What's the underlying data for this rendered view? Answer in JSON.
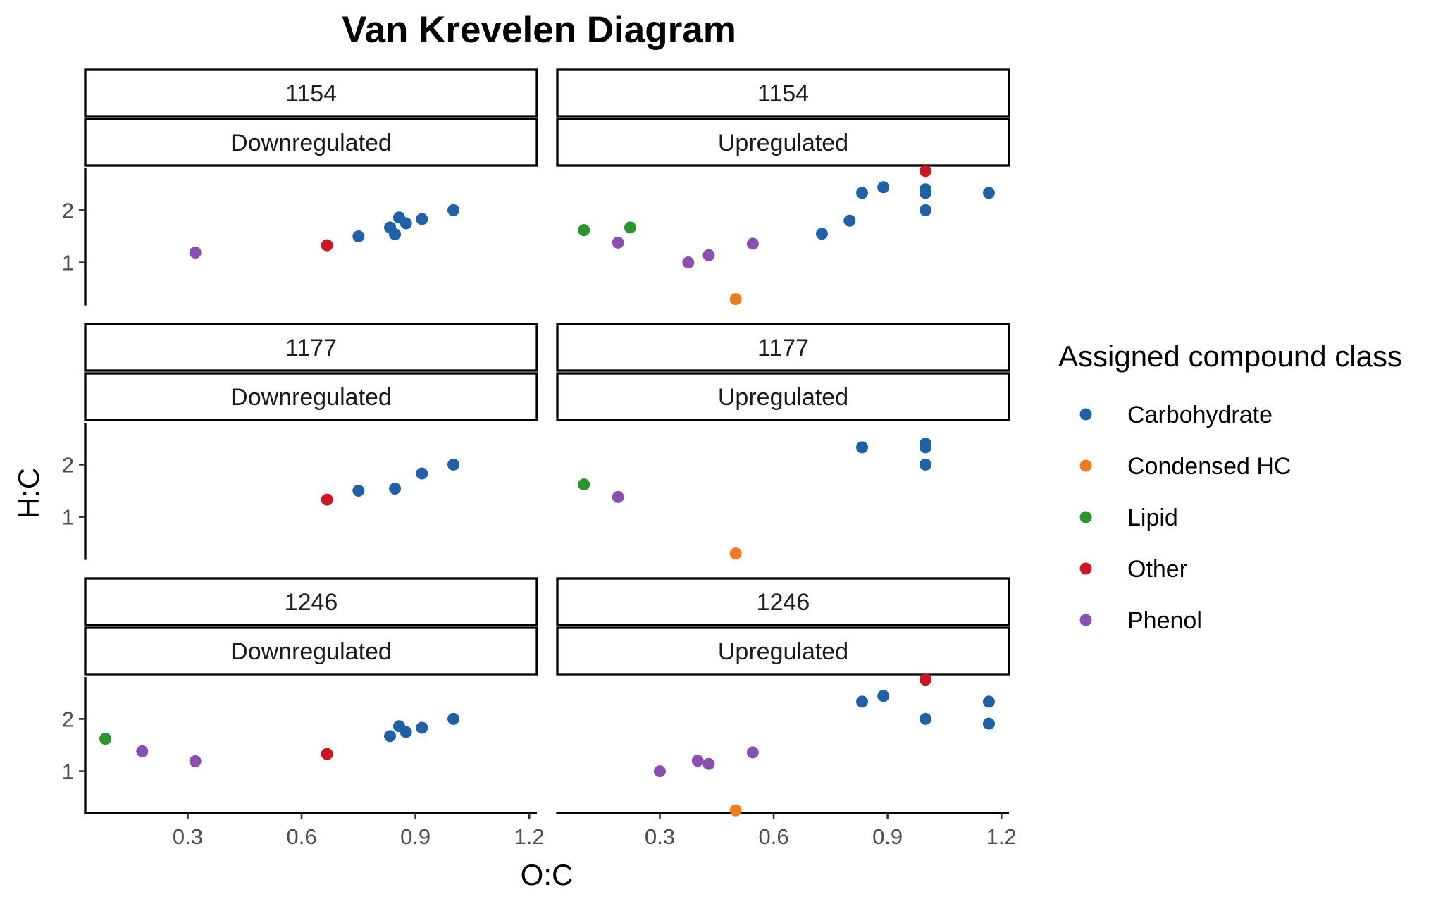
{
  "chart_data": {
    "type": "scatter",
    "title": "Van Krevelen Diagram",
    "xlabel": "O:C",
    "ylabel": "H:C",
    "xlim": [
      0.03,
      1.22
    ],
    "ylim": [
      0.2,
      2.8
    ],
    "x_ticks": [
      0.3,
      0.6,
      0.9,
      1.2
    ],
    "x_tick_labels": [
      "0.3",
      "0.6",
      "0.9",
      "1.2"
    ],
    "y_ticks": [
      1,
      2
    ],
    "y_tick_labels": [
      "1",
      "2"
    ],
    "grid": false,
    "legend": {
      "title": "Assigned compound class",
      "placement": "right",
      "entries": [
        {
          "name": "Carbohydrate",
          "color": "#1f61a8"
        },
        {
          "name": "Condensed HC",
          "color": "#f5791f"
        },
        {
          "name": "Lipid",
          "color": "#27962b"
        },
        {
          "name": "Other",
          "color": "#cf1424"
        },
        {
          "name": "Phenol",
          "color": "#8a4fb0"
        }
      ]
    },
    "panels": [
      {
        "strip_top": "1154",
        "strip_bottom": "Downregulated",
        "row": 0,
        "col": 0,
        "points": [
          {
            "x": 0.32,
            "y": 1.19,
            "class": "Phenol"
          },
          {
            "x": 0.667,
            "y": 1.33,
            "class": "Other"
          },
          {
            "x": 0.75,
            "y": 1.5,
            "class": "Carbohydrate"
          },
          {
            "x": 0.833,
            "y": 1.67,
            "class": "Carbohydrate"
          },
          {
            "x": 0.857,
            "y": 1.86,
            "class": "Carbohydrate"
          },
          {
            "x": 0.846,
            "y": 1.54,
            "class": "Carbohydrate"
          },
          {
            "x": 0.875,
            "y": 1.75,
            "class": "Carbohydrate"
          },
          {
            "x": 0.917,
            "y": 1.83,
            "class": "Carbohydrate"
          },
          {
            "x": 1.0,
            "y": 2.0,
            "class": "Carbohydrate"
          }
        ]
      },
      {
        "strip_top": "1154",
        "strip_bottom": "Upregulated",
        "row": 0,
        "col": 1,
        "points": [
          {
            "x": 0.1,
            "y": 1.62,
            "class": "Lipid"
          },
          {
            "x": 0.222,
            "y": 1.67,
            "class": "Lipid"
          },
          {
            "x": 0.19,
            "y": 1.38,
            "class": "Phenol"
          },
          {
            "x": 0.375,
            "y": 1.0,
            "class": "Phenol"
          },
          {
            "x": 0.429,
            "y": 1.14,
            "class": "Phenol"
          },
          {
            "x": 0.545,
            "y": 1.36,
            "class": "Phenol"
          },
          {
            "x": 0.5,
            "y": 0.3,
            "class": "Condensed HC"
          },
          {
            "x": 0.727,
            "y": 1.55,
            "class": "Carbohydrate"
          },
          {
            "x": 0.8,
            "y": 1.8,
            "class": "Carbohydrate"
          },
          {
            "x": 0.833,
            "y": 2.33,
            "class": "Carbohydrate"
          },
          {
            "x": 0.889,
            "y": 2.44,
            "class": "Carbohydrate"
          },
          {
            "x": 1.0,
            "y": 2.4,
            "class": "Carbohydrate"
          },
          {
            "x": 1.0,
            "y": 2.33,
            "class": "Carbohydrate"
          },
          {
            "x": 1.0,
            "y": 2.0,
            "class": "Carbohydrate"
          },
          {
            "x": 1.167,
            "y": 2.33,
            "class": "Carbohydrate"
          },
          {
            "x": 1.0,
            "y": 2.75,
            "class": "Other"
          }
        ]
      },
      {
        "strip_top": "1177",
        "strip_bottom": "Downregulated",
        "row": 1,
        "col": 0,
        "points": [
          {
            "x": 0.667,
            "y": 1.33,
            "class": "Other"
          },
          {
            "x": 0.75,
            "y": 1.5,
            "class": "Carbohydrate"
          },
          {
            "x": 0.846,
            "y": 1.54,
            "class": "Carbohydrate"
          },
          {
            "x": 0.917,
            "y": 1.83,
            "class": "Carbohydrate"
          },
          {
            "x": 1.0,
            "y": 2.0,
            "class": "Carbohydrate"
          }
        ]
      },
      {
        "strip_top": "1177",
        "strip_bottom": "Upregulated",
        "row": 1,
        "col": 1,
        "points": [
          {
            "x": 0.1,
            "y": 1.62,
            "class": "Lipid"
          },
          {
            "x": 0.19,
            "y": 1.38,
            "class": "Phenol"
          },
          {
            "x": 0.5,
            "y": 0.3,
            "class": "Condensed HC"
          },
          {
            "x": 0.833,
            "y": 2.33,
            "class": "Carbohydrate"
          },
          {
            "x": 1.0,
            "y": 2.4,
            "class": "Carbohydrate"
          },
          {
            "x": 1.0,
            "y": 2.33,
            "class": "Carbohydrate"
          },
          {
            "x": 1.0,
            "y": 2.0,
            "class": "Carbohydrate"
          }
        ]
      },
      {
        "strip_top": "1246",
        "strip_bottom": "Downregulated",
        "row": 2,
        "col": 0,
        "points": [
          {
            "x": 0.083,
            "y": 1.62,
            "class": "Lipid"
          },
          {
            "x": 0.18,
            "y": 1.38,
            "class": "Phenol"
          },
          {
            "x": 0.32,
            "y": 1.19,
            "class": "Phenol"
          },
          {
            "x": 0.667,
            "y": 1.33,
            "class": "Other"
          },
          {
            "x": 0.833,
            "y": 1.67,
            "class": "Carbohydrate"
          },
          {
            "x": 0.857,
            "y": 1.86,
            "class": "Carbohydrate"
          },
          {
            "x": 0.875,
            "y": 1.75,
            "class": "Carbohydrate"
          },
          {
            "x": 0.917,
            "y": 1.83,
            "class": "Carbohydrate"
          },
          {
            "x": 1.0,
            "y": 2.0,
            "class": "Carbohydrate"
          }
        ]
      },
      {
        "strip_top": "1246",
        "strip_bottom": "Upregulated",
        "row": 2,
        "col": 1,
        "points": [
          {
            "x": 0.3,
            "y": 1.0,
            "class": "Phenol"
          },
          {
            "x": 0.4,
            "y": 1.2,
            "class": "Phenol"
          },
          {
            "x": 0.429,
            "y": 1.14,
            "class": "Phenol"
          },
          {
            "x": 0.545,
            "y": 1.36,
            "class": "Phenol"
          },
          {
            "x": 0.5,
            "y": 0.25,
            "class": "Condensed HC"
          },
          {
            "x": 0.833,
            "y": 2.33,
            "class": "Carbohydrate"
          },
          {
            "x": 0.889,
            "y": 2.44,
            "class": "Carbohydrate"
          },
          {
            "x": 1.0,
            "y": 2.0,
            "class": "Carbohydrate"
          },
          {
            "x": 1.167,
            "y": 2.33,
            "class": "Carbohydrate"
          },
          {
            "x": 1.167,
            "y": 1.91,
            "class": "Carbohydrate"
          },
          {
            "x": 1.0,
            "y": 2.75,
            "class": "Other"
          }
        ]
      }
    ]
  }
}
